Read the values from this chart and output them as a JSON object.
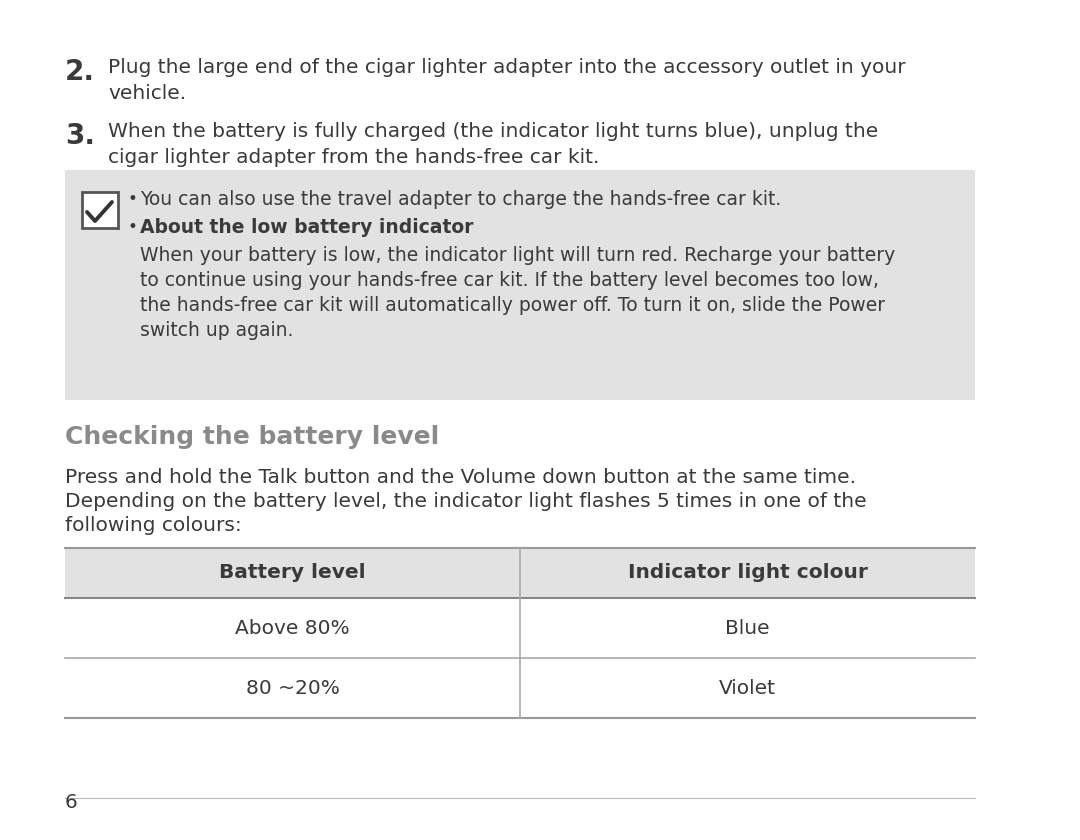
{
  "bg_color": "#ffffff",
  "text_color": "#3a3a3a",
  "gray_bg": "#e2e2e2",
  "step2_num": "2.",
  "step2_text_line1": "Plug the large end of the cigar lighter adapter into the accessory outlet in your",
  "step2_text_line2": "vehicle.",
  "step3_num": "3.",
  "step3_text_line1": "When the battery is fully charged (the indicator light turns blue), unplug the",
  "step3_text_line2": "cigar lighter adapter from the hands-free car kit.",
  "note_bullet1": "You can also use the travel adapter to charge the hands-free car kit.",
  "note_bullet2_bold": "About the low battery indicator",
  "note_body_line1": "When your battery is low, the indicator light will turn red. Recharge your battery",
  "note_body_line2": "to continue using your hands-free car kit. If the battery level becomes too low,",
  "note_body_line3": "the hands-free car kit will automatically power off. To turn it on, slide the Power",
  "note_body_line4": "switch up again.",
  "section_title": "Checking the battery level",
  "para_line1": "Press and hold the Talk button and the Volume down button at the same time.",
  "para_line2": "Depending on the battery level, the indicator light flashes 5 times in one of the",
  "para_line3": "following colours:",
  "table_header_col1": "Battery level",
  "table_header_col2": "Indicator light colour",
  "table_row1_col1": "Above 80%",
  "table_row1_col2": "Blue",
  "table_row2_col1": "80 ~20%",
  "table_row2_col2": "Violet",
  "page_num": "6",
  "main_font_size": 14.5,
  "note_font_size": 13.5,
  "section_title_size": 18,
  "table_font_size": 14.5,
  "num_font_size": 20
}
